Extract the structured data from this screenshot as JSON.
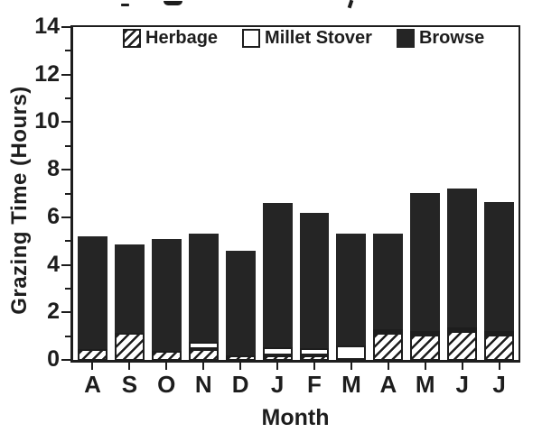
{
  "chart_data": {
    "type": "bar",
    "stacked": true,
    "xlabel": "Month",
    "ylabel": "Grazing Time (Hours)",
    "ylim": [
      0,
      14
    ],
    "yticks": [
      0,
      2,
      4,
      6,
      8,
      10,
      12,
      14
    ],
    "minor_yticks": [
      1,
      3,
      5,
      7,
      9,
      11,
      13
    ],
    "grid": false,
    "legend_position": "top-inside",
    "categories": [
      "A",
      "S",
      "O",
      "N",
      "D",
      "J",
      "F",
      "M",
      "A",
      "M",
      "J",
      "J"
    ],
    "series": [
      {
        "name": "Herbage",
        "pattern": "diagonal-hatch",
        "values": [
          0.45,
          1.15,
          0.4,
          0.45,
          0.2,
          0.2,
          0.2,
          0,
          1.15,
          1.05,
          1.2,
          1.05
        ]
      },
      {
        "name": "Millet Stover",
        "pattern": "white",
        "values": [
          0,
          0,
          0,
          0.3,
          0,
          0.35,
          0.3,
          0.6,
          0.15,
          0.15,
          0.1,
          0.1
        ]
      },
      {
        "name": "Browse",
        "pattern": "solid-black",
        "values": [
          4.75,
          3.7,
          4.7,
          4.55,
          4.4,
          6.05,
          5.7,
          4.7,
          4.0,
          5.8,
          5.85,
          5.45
        ]
      }
    ],
    "totals": [
      5.2,
      4.85,
      5.1,
      5.3,
      4.6,
      6.6,
      6.2,
      5.3,
      5.3,
      7.0,
      7.15,
      6.6
    ]
  },
  "colors": {
    "ink": "#1d1d1d",
    "bar_black": "#252525",
    "background": "#ffffff"
  }
}
